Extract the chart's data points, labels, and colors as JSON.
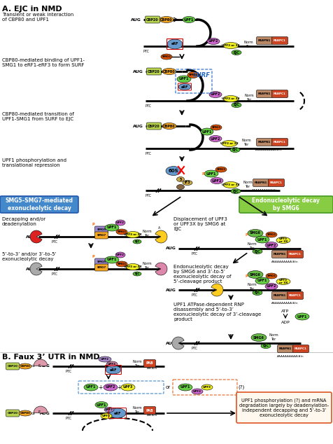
{
  "title_a": "A. EJC in NMD",
  "title_b": "B. Faux 3’ UTR in NMD",
  "bg_color": "#ffffff",
  "fig_width": 4.77,
  "fig_height": 6.34,
  "dpi": 100,
  "labels": {
    "transient": "Transient or weak interaction\nof CBP80 and UPF1",
    "cbp80_binding": "CBP80-mediated binding of UPF1-\nSMG1 to eRF1-eRF3 to form SURF",
    "cbp80_transition": "CBP80-mediated transition of\nUPF1-SMG1 from SURF to EJC",
    "upf1_phospho": "UPF1 phosphorylation and\ntranslational repression",
    "smg5_box": "SMG5–SMG7-mediated\nexonucleolytic decay",
    "endo_box": "Endonucleolytic decay\nby SMG6",
    "decap": "Decapping and/or\ndeadenylation",
    "displace": "Displacement of UPF3\nor UPF3X by SMG6 at\nEJC",
    "decay_53": "5’-to-3’ and/or 3’-to-5’\nexonucleolytic decay",
    "endo_decay": "Endonucleolytic decay\nby SMG6 and 3’-to-5’\nexonucleolytic decay of\n5’-cleavage product",
    "upf1_atpase": "UPF1 ATPase-dependent RNP\ndisassembly and 5’-to-3’\nexonucleolytic decay of 3’-cleavage\nproduct",
    "upf1_phospho_box": "UPF1 phosphorylation (?) and mRNA\ndegradation largely by deadenylation-\nindependent decapping and 5’-to-3’\nexonucleolytic decay"
  },
  "colors": {
    "CBP20": "#b8d44e",
    "CBP80": "#f5a623",
    "UPF1": "#66cc44",
    "UPF2": "#cc66cc",
    "UPF3": "#eeee22",
    "EJC": "#55bb33",
    "SMG1": "#dd5500",
    "SMG5": "#9988cc",
    "SMG6": "#66bb44",
    "SMG7": "#f5a623",
    "eRF": "#6699cc",
    "PABPN": "#bb8866",
    "PABPC": "#cc4422",
    "PAB": "#cc4422",
    "smg5_box_fill": "#4488cc",
    "endo_box_fill": "#88cc44",
    "surf_text": "#2266cc",
    "pac_red": "#dd2222",
    "pac_yellow": "#ffcc22",
    "pac_gray": "#aaaaaa",
    "pac_pink": "#dd88aa"
  }
}
